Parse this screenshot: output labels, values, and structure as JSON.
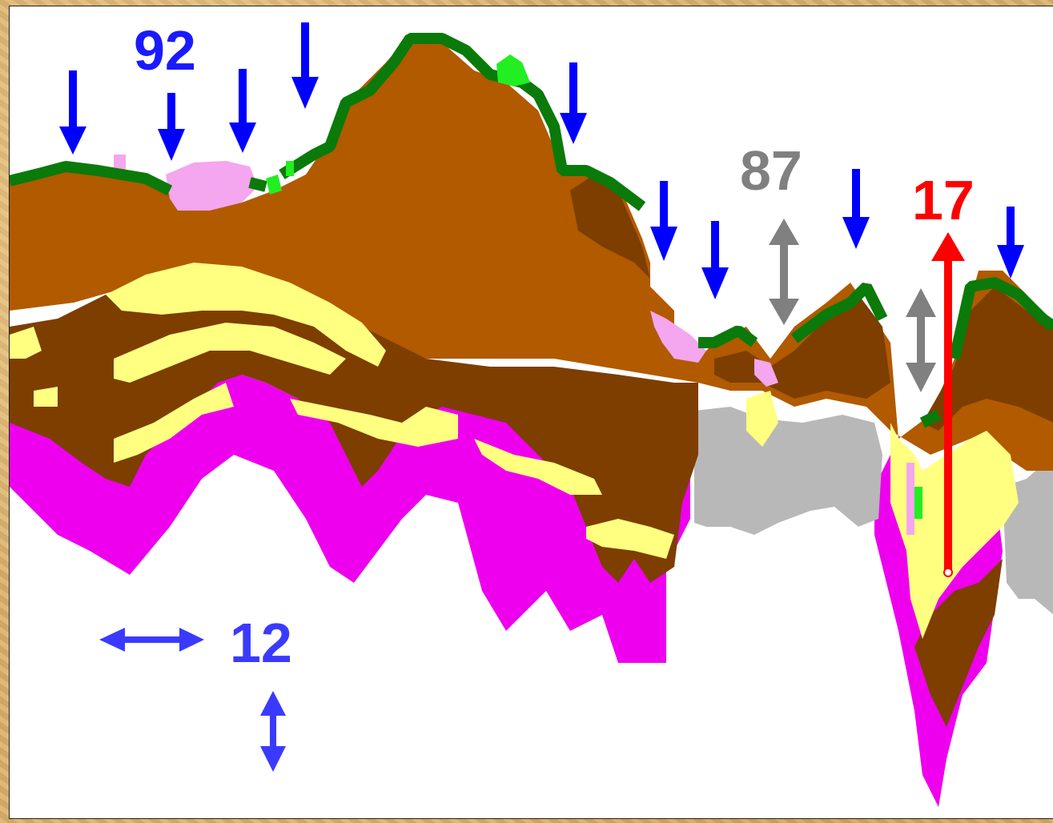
{
  "annotations": {
    "label_92": {
      "text": "92",
      "color": "#1a1aff"
    },
    "label_87": {
      "text": "87",
      "color": "#808080"
    },
    "label_17": {
      "text": "17",
      "color": "#ff0000"
    },
    "label_12": {
      "text": "12",
      "color": "#3a3aff"
    }
  },
  "arrows": {
    "down_arrow_color": "#0000ff",
    "double_arrow_gray": "#808080",
    "double_arrow_blue": "#3a3aff",
    "up_arrow_red": "#ff0000"
  },
  "layer_colors": {
    "vegetation": "#0a7a0a",
    "bright_green": "#22ee22",
    "light_pink": "#f4a6ee",
    "brown_upper": "#b15a00",
    "brown_dark": "#7d3e00",
    "yellow": "#ffff80",
    "magenta": "#ee00ee",
    "gray": "#b8b8b8",
    "background": "#ffffff"
  },
  "frame": {
    "texture": "parchment"
  }
}
